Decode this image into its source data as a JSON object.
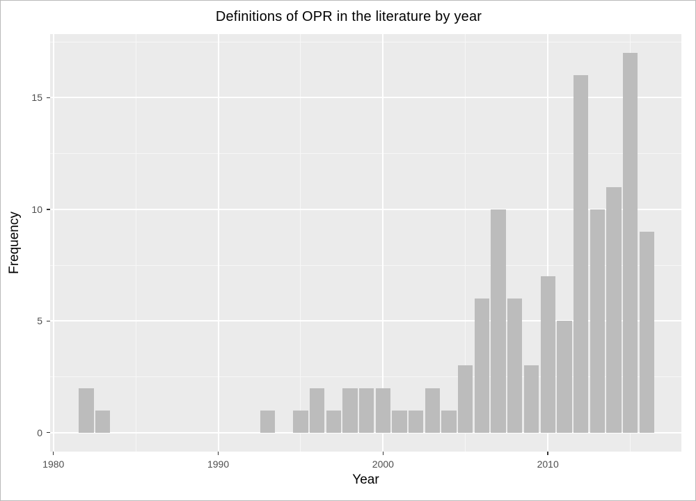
{
  "chart_data": {
    "type": "bar",
    "title": "Definitions of OPR in the literature by year",
    "xlabel": "Year",
    "ylabel": "Frequency",
    "x": [
      1982,
      1983,
      1993,
      1995,
      1996,
      1997,
      1998,
      1999,
      2000,
      2001,
      2002,
      2003,
      2004,
      2005,
      2006,
      2007,
      2008,
      2009,
      2010,
      2011,
      2012,
      2013,
      2014,
      2015,
      2016
    ],
    "values": [
      2,
      1,
      1,
      1,
      2,
      1,
      2,
      2,
      2,
      1,
      1,
      2,
      1,
      3,
      6,
      10,
      6,
      3,
      7,
      5,
      16,
      10,
      11,
      17,
      9
    ],
    "bar_width_years": 0.9,
    "xlim": [
      1979.8,
      2018.1
    ],
    "ylim": [
      -0.85,
      17.85
    ],
    "x_major_ticks": [
      1980,
      1990,
      2000,
      2010
    ],
    "x_tick_labels": [
      "1980",
      "1990",
      "2000",
      "2010"
    ],
    "x_minor_gridlines": [
      1985,
      1995,
      2005,
      2015
    ],
    "y_major_ticks": [
      0,
      5,
      10,
      15
    ],
    "y_tick_labels": [
      "0",
      "5",
      "10",
      "15"
    ],
    "y_minor_gridlines": [
      2.5,
      7.5,
      12.5,
      17.5
    ],
    "grid": "on",
    "legend": "none",
    "colors": {
      "background": "#ffffff",
      "panel_bg": "#ebebeb",
      "bar_fill": "#bcbcbc",
      "grid_major": "#ffffff",
      "grid_minor": "#f7f7f7",
      "tick_mark": "#333333",
      "tick_label": "#4d4d4d",
      "title_text": "#000000",
      "axis_title_text": "#000000"
    }
  }
}
